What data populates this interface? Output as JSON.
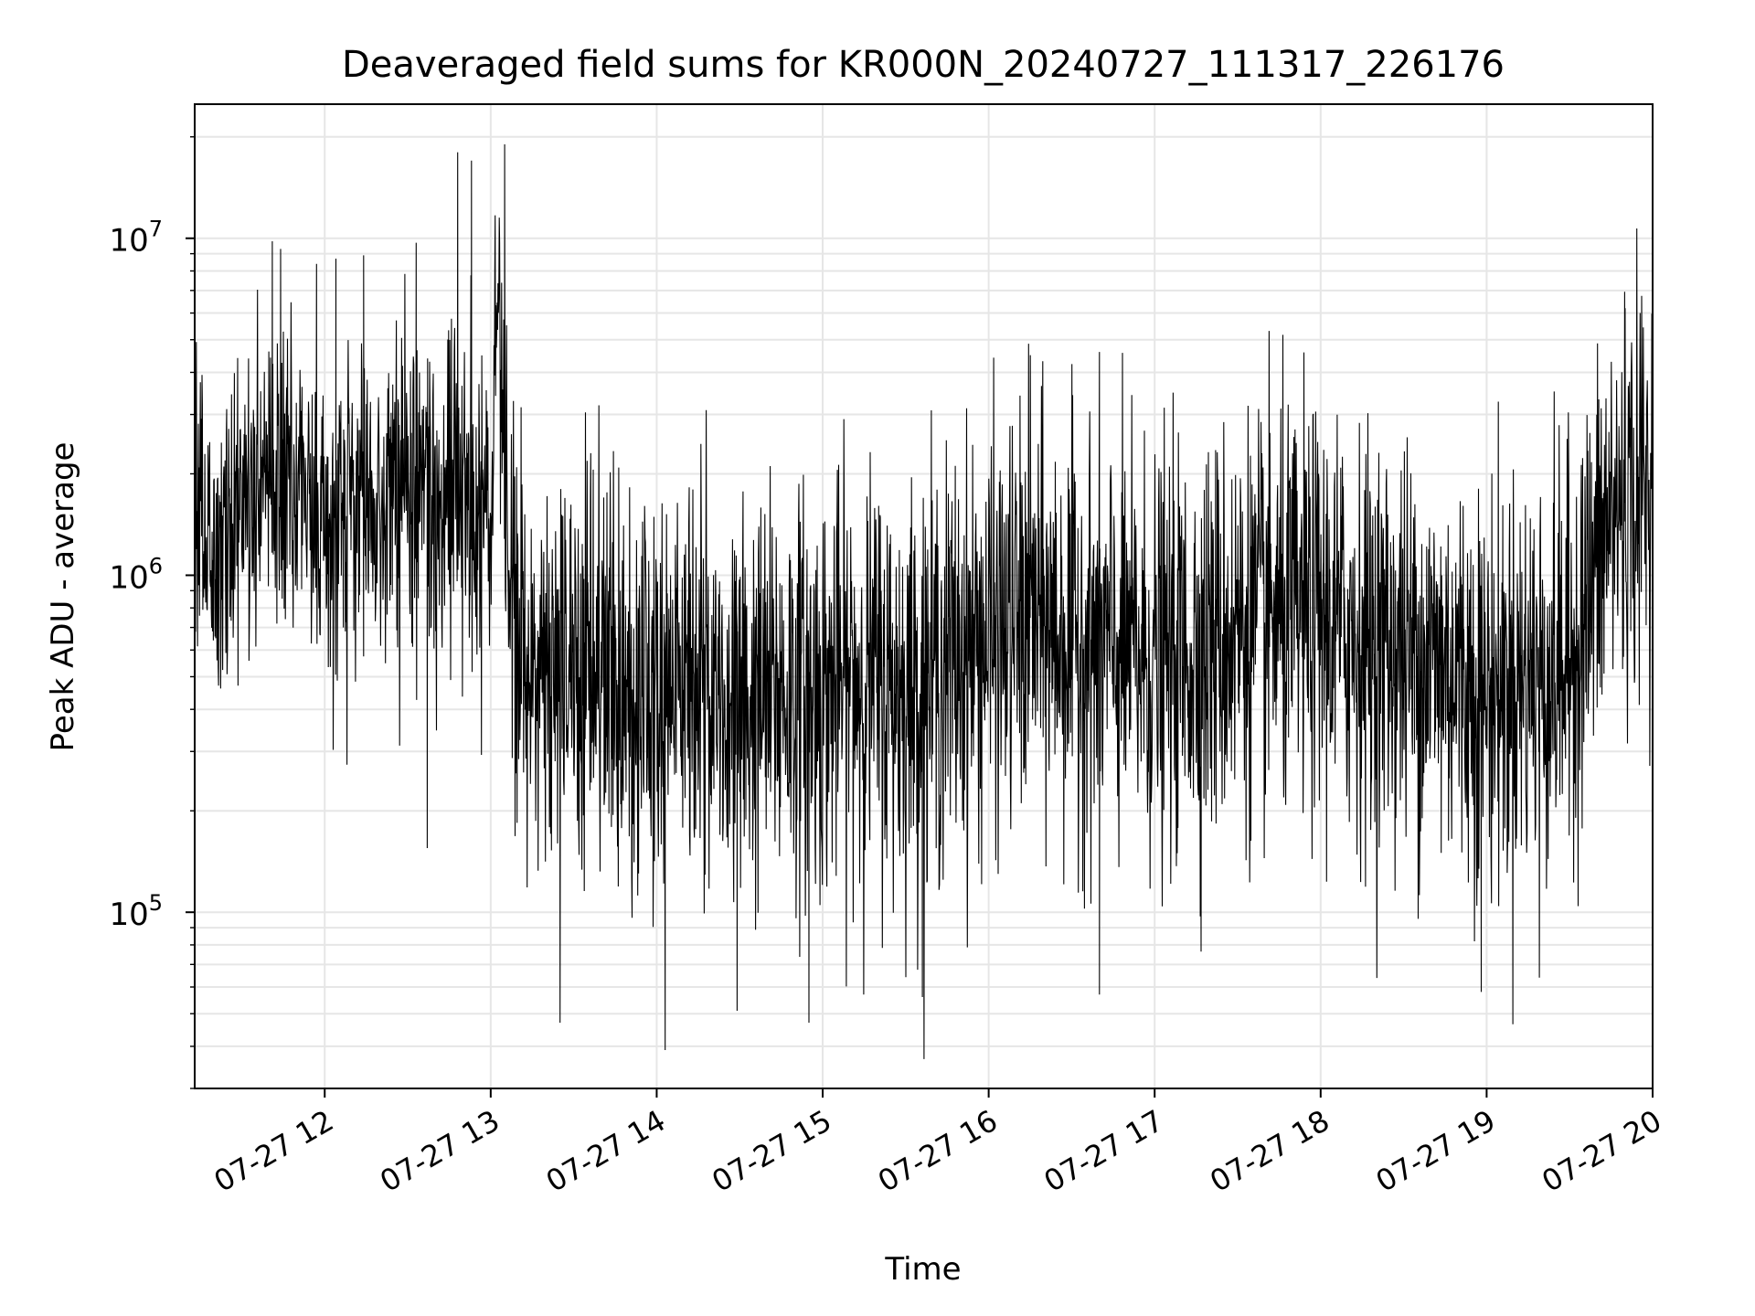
{
  "chart_data": {
    "type": "line",
    "title": "Deaveraged field sums for KR000N_20240727_111317_226176",
    "xlabel": "Time",
    "ylabel": "Peak ADU - average",
    "xscale": "time",
    "yscale": "log",
    "grid": true,
    "legend": "none",
    "xlim": [
      "2024-07-27 11:13",
      "2024-07-27 20:00"
    ],
    "ylim": [
      30000,
      25000000
    ],
    "x_ticks": [
      {
        "value": "2024-07-27 12:00",
        "label": "07-27 12"
      },
      {
        "value": "2024-07-27 13:00",
        "label": "07-27 13"
      },
      {
        "value": "2024-07-27 14:00",
        "label": "07-27 14"
      },
      {
        "value": "2024-07-27 15:00",
        "label": "07-27 15"
      },
      {
        "value": "2024-07-27 16:00",
        "label": "07-27 16"
      },
      {
        "value": "2024-07-27 17:00",
        "label": "07-27 17"
      },
      {
        "value": "2024-07-27 18:00",
        "label": "07-27 18"
      },
      {
        "value": "2024-07-27 19:00",
        "label": "07-27 19"
      },
      {
        "value": "2024-07-27 20:00",
        "label": "07-27 20"
      }
    ],
    "y_ticks": [
      {
        "value": 100000,
        "base": "10",
        "exp": "5"
      },
      {
        "value": 1000000,
        "base": "10",
        "exp": "6"
      },
      {
        "value": 10000000,
        "base": "10",
        "exp": "7"
      }
    ],
    "series": [
      {
        "color": "#000000",
        "x": [
          "2024-07-27 11:13",
          "2024-07-27 11:20",
          "2024-07-27 11:30",
          "2024-07-27 11:40",
          "2024-07-27 11:50",
          "2024-07-27 12:00",
          "2024-07-27 12:10",
          "2024-07-27 12:20",
          "2024-07-27 12:30",
          "2024-07-27 12:40",
          "2024-07-27 12:50",
          "2024-07-27 13:00",
          "2024-07-27 13:03",
          "2024-07-27 13:06",
          "2024-07-27 13:10",
          "2024-07-27 13:20",
          "2024-07-27 13:30",
          "2024-07-27 13:40",
          "2024-07-27 13:50",
          "2024-07-27 14:00",
          "2024-07-27 14:15",
          "2024-07-27 14:30",
          "2024-07-27 14:45",
          "2024-07-27 15:00",
          "2024-07-27 15:15",
          "2024-07-27 15:30",
          "2024-07-27 15:45",
          "2024-07-27 16:00",
          "2024-07-27 16:15",
          "2024-07-27 16:30",
          "2024-07-27 16:45",
          "2024-07-27 17:00",
          "2024-07-27 17:15",
          "2024-07-27 17:30",
          "2024-07-27 17:45",
          "2024-07-27 18:00",
          "2024-07-27 18:15",
          "2024-07-27 18:30",
          "2024-07-27 18:45",
          "2024-07-27 19:00",
          "2024-07-27 19:15",
          "2024-07-27 19:30",
          "2024-07-27 19:45",
          "2024-07-27 20:00"
        ],
        "y": [
          1700000,
          1300000,
          1500000,
          2000000,
          1800000,
          1500000,
          1700000,
          1600000,
          1900000,
          1600000,
          1600000,
          1400000,
          8000000,
          1000000,
          600000,
          500000,
          550000,
          450000,
          500000,
          450000,
          500000,
          400000,
          450000,
          450000,
          500000,
          450000,
          550000,
          650000,
          750000,
          650000,
          600000,
          550000,
          600000,
          700000,
          750000,
          750000,
          650000,
          600000,
          550000,
          450000,
          500000,
          550000,
          1500000,
          1900000
        ],
        "peaks_high": [
          {
            "x": "2024-07-27 11:41",
            "y": 9800000
          },
          {
            "x": "2024-07-27 11:44",
            "y": 9300000
          },
          {
            "x": "2024-07-27 11:57",
            "y": 8400000
          },
          {
            "x": "2024-07-27 12:04",
            "y": 8700000
          },
          {
            "x": "2024-07-27 12:14",
            "y": 8900000
          },
          {
            "x": "2024-07-27 12:33",
            "y": 9700000
          },
          {
            "x": "2024-07-27 12:48",
            "y": 18000000
          },
          {
            "x": "2024-07-27 12:53",
            "y": 17000000
          },
          {
            "x": "2024-07-27 13:05",
            "y": 19000000
          },
          {
            "x": "2024-07-27 16:15",
            "y": 4500000
          },
          {
            "x": "2024-07-27 19:50",
            "y": 6200000
          }
        ],
        "peaks_low": [
          {
            "x": "2024-07-27 12:37",
            "y": 155000
          },
          {
            "x": "2024-07-27 13:25",
            "y": 47000
          },
          {
            "x": "2024-07-27 14:03",
            "y": 39000
          },
          {
            "x": "2024-07-27 14:29",
            "y": 51000
          },
          {
            "x": "2024-07-27 14:55",
            "y": 47000
          },
          {
            "x": "2024-07-27 15:36",
            "y": 56000
          },
          {
            "x": "2024-07-27 16:40",
            "y": 57000
          },
          {
            "x": "2024-07-27 18:58",
            "y": 58000
          },
          {
            "x": "2024-07-27 19:19",
            "y": 64000
          }
        ]
      }
    ]
  }
}
